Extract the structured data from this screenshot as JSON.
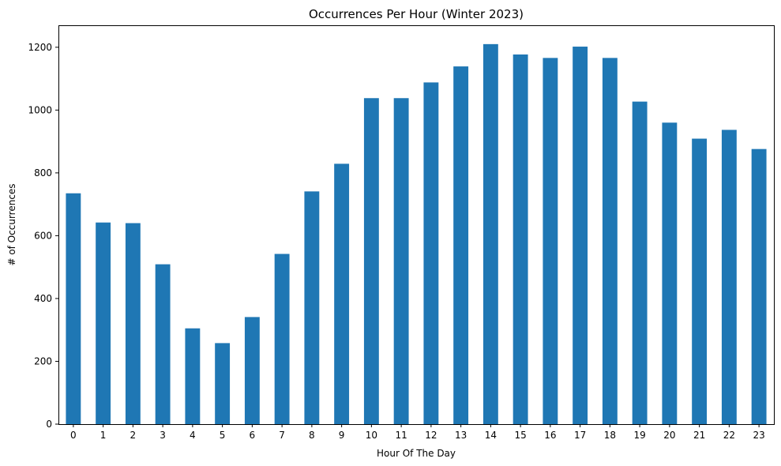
{
  "chart_data": {
    "type": "bar",
    "title": "Occurrences Per Hour (Winter 2023)",
    "xlabel": "Hour Of The Day",
    "ylabel": "# of Occurrences",
    "categories": [
      "0",
      "1",
      "2",
      "3",
      "4",
      "5",
      "6",
      "7",
      "8",
      "9",
      "10",
      "11",
      "12",
      "13",
      "14",
      "15",
      "16",
      "17",
      "18",
      "19",
      "20",
      "21",
      "22",
      "23"
    ],
    "values": [
      735,
      642,
      640,
      509,
      305,
      258,
      341,
      542,
      741,
      829,
      1038,
      1038,
      1088,
      1139,
      1210,
      1177,
      1166,
      1202,
      1166,
      1027,
      960,
      909,
      937,
      876
    ],
    "ylim": [
      0,
      1270
    ],
    "yticks": [
      0,
      200,
      400,
      600,
      800,
      1000,
      1200
    ],
    "grid": false,
    "colors": {
      "bar": "#1f77b4"
    }
  }
}
